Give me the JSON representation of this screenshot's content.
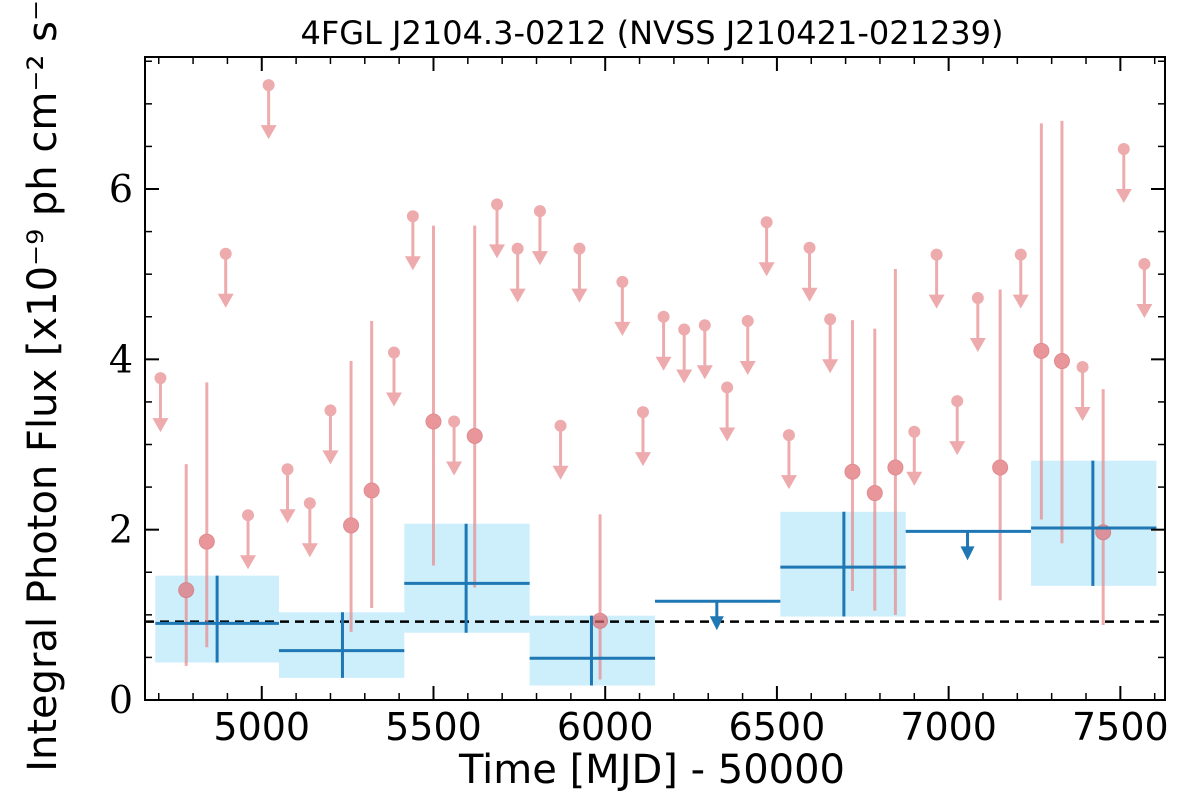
{
  "chart_data": {
    "type": "scatter",
    "title": "4FGL J2104.3-0212 (NVSS J210421-021239)",
    "xlabel": "Time [MJD] - 50000",
    "ylabel": "Integral Photon Flux [x10⁻⁹ ph cm⁻² s⁻¹]",
    "xlim": [
      4660,
      7630
    ],
    "ylim": [
      0,
      7.55
    ],
    "xticks": [
      "5000",
      "5500",
      "6000",
      "6500",
      "7000",
      "7500"
    ],
    "yticks": [
      "0",
      "2",
      "4",
      "6"
    ],
    "reference_line": 0.92,
    "colors": {
      "short_bins": "#e8888c",
      "long_bins": "#1f77b4",
      "long_bins_fill": "#cdeefb",
      "reference": "#000000"
    },
    "short_bins": {
      "detections": [
        {
          "x": 4780,
          "y": 1.29,
          "lo": 0.4,
          "hi": 2.77
        },
        {
          "x": 4840,
          "y": 1.86,
          "lo": 0.62,
          "hi": 3.73
        },
        {
          "x": 5260,
          "y": 2.05,
          "lo": 0.8,
          "hi": 3.98
        },
        {
          "x": 5320,
          "y": 2.46,
          "lo": 1.08,
          "hi": 4.45
        },
        {
          "x": 5500,
          "y": 3.27,
          "lo": 1.58,
          "hi": 5.57
        },
        {
          "x": 5620,
          "y": 3.1,
          "lo": 1.32,
          "hi": 5.57
        },
        {
          "x": 5985,
          "y": 0.93,
          "lo": 0.24,
          "hi": 2.18
        },
        {
          "x": 6720,
          "y": 2.68,
          "lo": 1.28,
          "hi": 4.46
        },
        {
          "x": 6785,
          "y": 2.43,
          "lo": 1.05,
          "hi": 4.36
        },
        {
          "x": 6845,
          "y": 2.73,
          "lo": 1.0,
          "hi": 5.06
        },
        {
          "x": 7150,
          "y": 2.73,
          "lo": 1.17,
          "hi": 4.82
        },
        {
          "x": 7270,
          "y": 4.1,
          "lo": 2.12,
          "hi": 6.77
        },
        {
          "x": 7330,
          "y": 3.98,
          "lo": 1.84,
          "hi": 6.8
        },
        {
          "x": 7450,
          "y": 1.97,
          "lo": 0.88,
          "hi": 3.65
        }
      ],
      "upper_limits": [
        {
          "x": 4705,
          "y": 3.78
        },
        {
          "x": 4895,
          "y": 5.24
        },
        {
          "x": 4960,
          "y": 2.17
        },
        {
          "x": 5020,
          "y": 7.22
        },
        {
          "x": 5075,
          "y": 2.71
        },
        {
          "x": 5140,
          "y": 2.31
        },
        {
          "x": 5200,
          "y": 3.4
        },
        {
          "x": 5385,
          "y": 4.08
        },
        {
          "x": 5440,
          "y": 5.68
        },
        {
          "x": 5560,
          "y": 3.27
        },
        {
          "x": 5685,
          "y": 5.82
        },
        {
          "x": 5745,
          "y": 5.3
        },
        {
          "x": 5810,
          "y": 5.74
        },
        {
          "x": 5870,
          "y": 3.22
        },
        {
          "x": 5925,
          "y": 5.3
        },
        {
          "x": 6050,
          "y": 4.91
        },
        {
          "x": 6110,
          "y": 3.38
        },
        {
          "x": 6170,
          "y": 4.5
        },
        {
          "x": 6230,
          "y": 4.35
        },
        {
          "x": 6290,
          "y": 4.4
        },
        {
          "x": 6355,
          "y": 3.67
        },
        {
          "x": 6415,
          "y": 4.45
        },
        {
          "x": 6470,
          "y": 5.61
        },
        {
          "x": 6535,
          "y": 3.11
        },
        {
          "x": 6595,
          "y": 5.31
        },
        {
          "x": 6655,
          "y": 4.47
        },
        {
          "x": 6900,
          "y": 3.15
        },
        {
          "x": 6965,
          "y": 5.23
        },
        {
          "x": 7025,
          "y": 3.51
        },
        {
          "x": 7085,
          "y": 4.72
        },
        {
          "x": 7210,
          "y": 5.23
        },
        {
          "x": 7390,
          "y": 3.91
        },
        {
          "x": 7510,
          "y": 6.47
        },
        {
          "x": 7570,
          "y": 5.12
        }
      ]
    },
    "long_bins": {
      "detections": [
        {
          "x0": 4690,
          "x1": 5050,
          "xc": 4870,
          "y": 0.9,
          "lo": 0.44,
          "hi": 1.46
        },
        {
          "x0": 5050,
          "x1": 5415,
          "xc": 5235,
          "y": 0.58,
          "lo": 0.26,
          "hi": 1.03
        },
        {
          "x0": 5415,
          "x1": 5780,
          "xc": 5595,
          "y": 1.37,
          "lo": 0.79,
          "hi": 2.07
        },
        {
          "x0": 5780,
          "x1": 6145,
          "xc": 5960,
          "y": 0.49,
          "lo": 0.17,
          "hi": 0.99
        },
        {
          "x0": 6510,
          "x1": 6875,
          "xc": 6695,
          "y": 1.56,
          "lo": 0.98,
          "hi": 2.21
        },
        {
          "x0": 7240,
          "x1": 7605,
          "xc": 7420,
          "y": 2.02,
          "lo": 1.34,
          "hi": 2.81
        }
      ],
      "upper_limits": [
        {
          "x0": 6145,
          "x1": 6510,
          "xc": 6325,
          "y": 1.16
        },
        {
          "x0": 6875,
          "x1": 7240,
          "xc": 7055,
          "y": 1.98
        }
      ]
    }
  }
}
